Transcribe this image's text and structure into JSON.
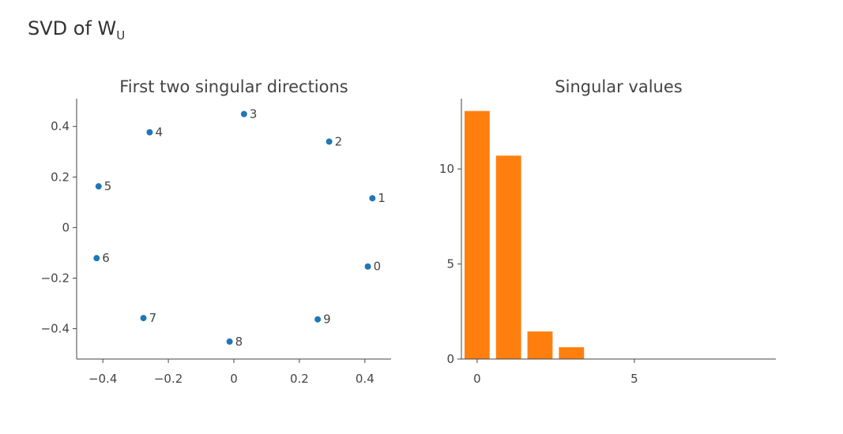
{
  "title": {
    "text": "SVD of W",
    "subscript": "U"
  },
  "chart_data": [
    {
      "type": "scatter",
      "title": "First two singular directions",
      "xlabel": "",
      "ylabel": "",
      "xlim": [
        -0.48,
        0.48
      ],
      "ylim": [
        -0.52,
        0.51
      ],
      "x_ticks": [
        -0.4,
        -0.2,
        0,
        0.2,
        0.4
      ],
      "x_tick_labels": [
        "−0.4",
        "−0.2",
        "0",
        "0.2",
        "0.4"
      ],
      "y_ticks": [
        -0.4,
        -0.2,
        0,
        0.2,
        0.4
      ],
      "y_tick_labels": [
        "−0.4",
        "−0.2",
        "0",
        "0.2",
        "0.4"
      ],
      "grid": false,
      "color": "#1f77b4",
      "points": [
        {
          "label": "0",
          "x": 0.409,
          "y": -0.154
        },
        {
          "label": "1",
          "x": 0.423,
          "y": 0.116
        },
        {
          "label": "2",
          "x": 0.291,
          "y": 0.34
        },
        {
          "label": "3",
          "x": 0.031,
          "y": 0.449
        },
        {
          "label": "4",
          "x": -0.257,
          "y": 0.377
        },
        {
          "label": "5",
          "x": -0.413,
          "y": 0.163
        },
        {
          "label": "6",
          "x": -0.419,
          "y": -0.121
        },
        {
          "label": "7",
          "x": -0.276,
          "y": -0.358
        },
        {
          "label": "8",
          "x": -0.013,
          "y": -0.451
        },
        {
          "label": "9",
          "x": 0.256,
          "y": -0.363
        }
      ]
    },
    {
      "type": "bar",
      "title": "Singular values",
      "xlabel": "",
      "ylabel": "",
      "xlim": [
        -0.5,
        9.5
      ],
      "ylim": [
        0,
        13.7
      ],
      "x_ticks": [
        0,
        5
      ],
      "x_tick_labels": [
        "0",
        "5"
      ],
      "y_ticks": [
        0,
        5,
        10
      ],
      "y_tick_labels": [
        "0",
        "5",
        "10"
      ],
      "grid": false,
      "color": "#ff7f0e",
      "categories": [
        0,
        1,
        2,
        3,
        4,
        5,
        6,
        7,
        8,
        9
      ],
      "values": [
        13.05,
        10.7,
        1.45,
        0.62,
        0,
        0,
        0,
        0,
        0,
        0
      ]
    }
  ]
}
